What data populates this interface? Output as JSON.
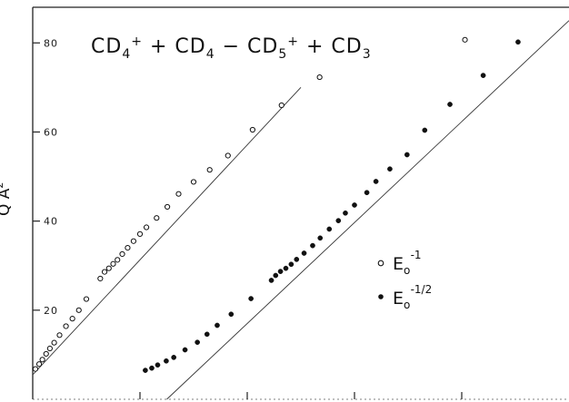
{
  "chart_data": {
    "type": "scatter",
    "title": "CD4+ + CD4 - CD5+ + CD3",
    "ylabel": "Q Å²",
    "xlabel": "",
    "ylim": [
      0,
      88
    ],
    "xlim": [
      0,
      100
    ],
    "y_ticks": [
      20,
      40,
      60,
      80
    ],
    "y_tick_labels": [
      "20",
      "40",
      "60",
      "80"
    ],
    "x_ticks": [
      20,
      40,
      60,
      80
    ],
    "grid": false,
    "legend_position": "middle-right",
    "series": [
      {
        "name": "E0^-1",
        "marker": "open-circle",
        "points": [
          [
            0.5,
            6.8
          ],
          [
            1.2,
            7.9
          ],
          [
            1.8,
            8.9
          ],
          [
            2.5,
            10.2
          ],
          [
            3.2,
            11.4
          ],
          [
            4.0,
            12.7
          ],
          [
            5.0,
            14.4
          ],
          [
            6.2,
            16.4
          ],
          [
            7.4,
            18.1
          ],
          [
            8.6,
            20.0
          ],
          [
            10.0,
            22.5
          ],
          [
            12.6,
            27.1
          ],
          [
            13.4,
            28.6
          ],
          [
            14.2,
            29.4
          ],
          [
            15.0,
            30.4
          ],
          [
            15.8,
            31.3
          ],
          [
            16.7,
            32.6
          ],
          [
            17.7,
            34.0
          ],
          [
            18.8,
            35.5
          ],
          [
            20.0,
            37.1
          ],
          [
            21.2,
            38.6
          ],
          [
            23.1,
            40.7
          ],
          [
            25.1,
            43.2
          ],
          [
            27.2,
            46.1
          ],
          [
            30.0,
            48.8
          ],
          [
            33.0,
            51.5
          ],
          [
            36.4,
            54.7
          ],
          [
            41.0,
            60.5
          ],
          [
            46.4,
            66.0
          ],
          [
            53.5,
            72.3
          ],
          [
            80.6,
            80.7
          ]
        ]
      },
      {
        "name": "E0^-1/2",
        "marker": "filled-circle",
        "points": [
          [
            21.0,
            6.5
          ],
          [
            22.2,
            7.0
          ],
          [
            23.3,
            7.7
          ],
          [
            24.9,
            8.6
          ],
          [
            26.3,
            9.4
          ],
          [
            28.4,
            11.1
          ],
          [
            30.7,
            12.8
          ],
          [
            32.5,
            14.6
          ],
          [
            34.4,
            16.6
          ],
          [
            37.0,
            19.1
          ],
          [
            40.7,
            22.6
          ],
          [
            44.5,
            26.7
          ],
          [
            45.3,
            27.8
          ],
          [
            46.2,
            28.7
          ],
          [
            47.2,
            29.4
          ],
          [
            48.2,
            30.3
          ],
          [
            49.2,
            31.4
          ],
          [
            50.6,
            32.8
          ],
          [
            52.2,
            34.5
          ],
          [
            53.6,
            36.2
          ],
          [
            55.3,
            38.2
          ],
          [
            57.0,
            40.1
          ],
          [
            58.3,
            41.8
          ],
          [
            60.0,
            43.6
          ],
          [
            62.3,
            46.4
          ],
          [
            64.0,
            48.9
          ],
          [
            66.6,
            51.7
          ],
          [
            69.8,
            54.9
          ],
          [
            73.1,
            60.4
          ],
          [
            77.8,
            66.2
          ],
          [
            84.0,
            72.7
          ],
          [
            90.5,
            80.2
          ]
        ]
      }
    ],
    "fit_lines": [
      {
        "for": "E0^-1",
        "from": [
          0,
          5.5
        ],
        "to": [
          50,
          70.0
        ]
      },
      {
        "for": "E0^-1/2",
        "from": [
          25,
          0
        ],
        "to": [
          100,
          85.0
        ]
      }
    ],
    "legend": [
      {
        "marker": "open-circle",
        "label": "E0^-1"
      },
      {
        "marker": "filled-circle",
        "label": "E0^-1/2"
      }
    ]
  }
}
